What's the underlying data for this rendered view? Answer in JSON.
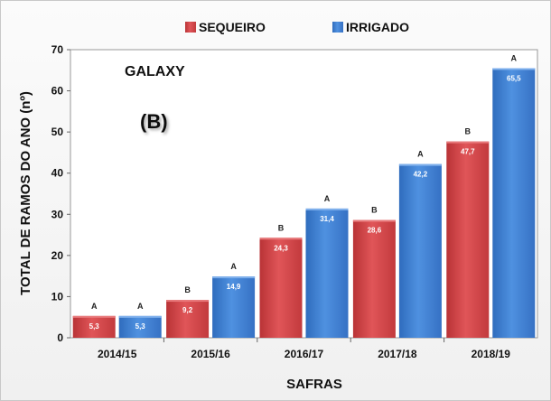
{
  "chart_data": {
    "type": "bar",
    "title": "GALAXY",
    "panel_tag": "(B)",
    "xlabel": "SAFRAS",
    "ylabel": "TOTAL DE RAMOS DO ANO  (nº)",
    "ylim": [
      0,
      70
    ],
    "yticks": [
      "0",
      "10",
      "20",
      "30",
      "40",
      "50",
      "60",
      "70"
    ],
    "categories": [
      "2014/15",
      "2015/16",
      "2016/17",
      "2017/18",
      "2018/19"
    ],
    "legend_position": "top",
    "series": [
      {
        "name": "SEQUEIRO",
        "color": "#d64548",
        "values": [
          5.3,
          9.2,
          24.3,
          28.6,
          47.7
        ],
        "value_labels": [
          "5,3",
          "9,2",
          "24,3",
          "28,6",
          "47,7"
        ],
        "letters": [
          "A",
          "B",
          "B",
          "B",
          "B"
        ]
      },
      {
        "name": "IRRIGADO",
        "color": "#3d7fd1",
        "values": [
          5.3,
          14.9,
          31.4,
          42.2,
          65.5
        ],
        "value_labels": [
          "5,3",
          "14,9",
          "31,4",
          "42,2",
          "65,5"
        ],
        "letters": [
          "A",
          "A",
          "A",
          "A",
          "A"
        ]
      }
    ]
  }
}
